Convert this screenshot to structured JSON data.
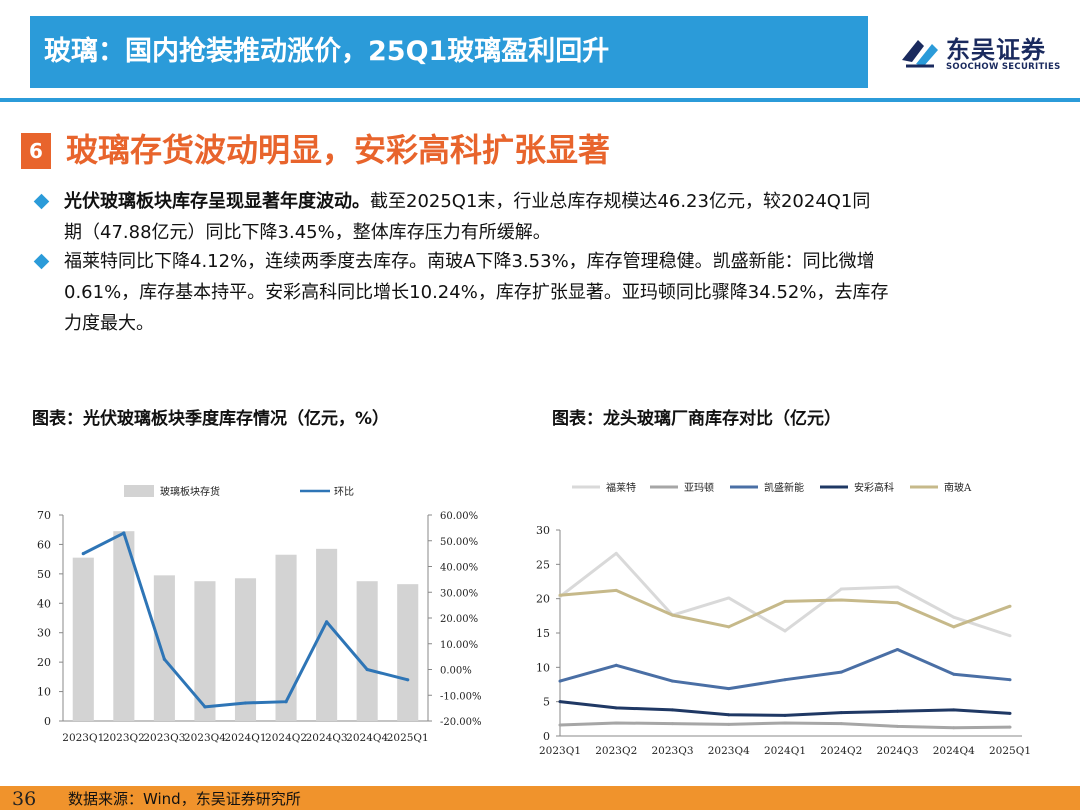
{
  "header": {
    "title": "玻璃：国内抢装推动涨价，25Q1玻璃盈利回升",
    "logo_cn": "东吴证券",
    "logo_en": "SOOCHOW SECURITIES"
  },
  "section": {
    "number": "6",
    "title": "玻璃存货波动明显，安彩高科扩张显著"
  },
  "bullets": [
    {
      "bold": "光伏玻璃板块库存呈现显著年度波动。",
      "line1": "截至2025Q1末，行业总库存规模达46.23亿元，较2024Q1同",
      "line2": "期（47.88亿元）同比下降3.45%，整体库存压力有所缓解。"
    },
    {
      "line1": "福莱特同比下降4.12%，连续两季度去库存。南玻A下降3.53%，库存管理稳健。凯盛新能：同比微增",
      "line2": "0.61%，库存基本持平。安彩高科同比增长10.24%，库存扩张显著。亚玛顿同比骤降34.52%，去库存",
      "line3": "力度最大。"
    }
  ],
  "charts": {
    "left_title": "图表：光伏玻璃板块季度库存情况（亿元，%）",
    "right_title": "图表：龙头玻璃厂商库存对比（亿元）"
  },
  "footer": {
    "page": "36",
    "source": "数据来源：Wind，东吴证券研究所"
  },
  "colors": {
    "accent_blue": "#2b9bd9",
    "accent_orange": "#e8642c",
    "footer_orange": "#f0932c"
  },
  "chart_data": [
    {
      "type": "bar",
      "categories": [
        "2023Q1",
        "2023Q2",
        "2023Q3",
        "2023Q4",
        "2024Q1",
        "2024Q2",
        "2024Q3",
        "2024Q4",
        "2025Q1"
      ],
      "series": [
        {
          "name": "玻璃板块存货",
          "type": "bar",
          "axis": "left",
          "color": "#d3d3d3",
          "values": [
            55.5,
            64.5,
            49.5,
            47.5,
            48.5,
            56.5,
            58.5,
            47.5,
            46.5
          ]
        },
        {
          "name": "环比",
          "type": "line",
          "axis": "right",
          "color": "#2e75b6",
          "values": [
            45.0,
            53.0,
            4.0,
            -14.5,
            -13.0,
            -12.5,
            18.5,
            0.0,
            -4.0
          ]
        }
      ],
      "ylim": [
        0,
        70
      ],
      "yticks": [
        "0",
        "10",
        "20",
        "30",
        "40",
        "50",
        "60",
        "70"
      ],
      "y2lim": [
        -20,
        60
      ],
      "y2ticks": [
        "-20.00%",
        "-10.00%",
        "0.00%",
        "10.00%",
        "20.00%",
        "30.00%",
        "40.00%",
        "50.00%",
        "60.00%"
      ],
      "legend": "top"
    },
    {
      "type": "line",
      "categories": [
        "2023Q1",
        "2023Q2",
        "2023Q3",
        "2023Q4",
        "2024Q1",
        "2024Q2",
        "2024Q3",
        "2024Q4",
        "2025Q1"
      ],
      "series": [
        {
          "name": "福莱特",
          "color": "#d9d9d9",
          "values": [
            20.3,
            26.6,
            17.6,
            20.1,
            15.3,
            21.4,
            21.7,
            17.3,
            14.6
          ]
        },
        {
          "name": "亚玛顿",
          "color": "#a6a6a6",
          "values": [
            1.6,
            1.9,
            1.8,
            1.7,
            1.9,
            1.8,
            1.4,
            1.2,
            1.3
          ]
        },
        {
          "name": "凯盛新能",
          "color": "#4a6fa5",
          "values": [
            8.0,
            10.3,
            8.0,
            6.9,
            8.2,
            9.3,
            12.6,
            9.0,
            8.2
          ]
        },
        {
          "name": "安彩高科",
          "color": "#1f3864",
          "values": [
            5.0,
            4.1,
            3.8,
            3.1,
            3.0,
            3.4,
            3.6,
            3.8,
            3.3
          ]
        },
        {
          "name": "南玻A",
          "color": "#c6b98a",
          "values": [
            20.5,
            21.2,
            17.6,
            15.9,
            19.6,
            19.8,
            19.4,
            15.9,
            18.9
          ]
        }
      ],
      "ylim": [
        0,
        30
      ],
      "yticks": [
        "0",
        "5",
        "10",
        "15",
        "20",
        "25",
        "30"
      ],
      "legend": "top"
    }
  ]
}
